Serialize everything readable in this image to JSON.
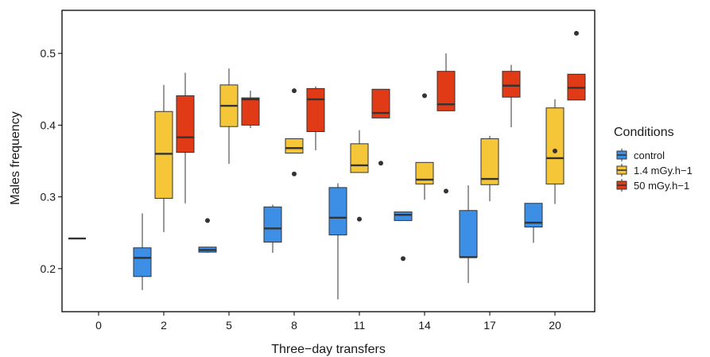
{
  "chart_data": {
    "type": "boxplot",
    "title": "",
    "xlabel": "Three−day transfers",
    "ylabel": "Males frequency",
    "x_categories": [
      "0",
      "2",
      "5",
      "8",
      "11",
      "14",
      "17",
      "20"
    ],
    "ylim": [
      0.14,
      0.56
    ],
    "yticks": [
      0.2,
      0.3,
      0.4,
      0.5
    ],
    "ytick_labels": [
      "0.2",
      "0.3",
      "0.4",
      "0.5"
    ],
    "grid": false,
    "legend": {
      "title": "Conditions",
      "position": "right",
      "entries": [
        "control",
        "1.4 mGy.h−1",
        "50 mGy.h−1"
      ]
    },
    "colors": {
      "control": "#3d8fe6",
      "1.4 mGy.h−1": "#f5c638",
      "50 mGy.h−1": "#e03b16"
    },
    "series": [
      {
        "name": "control",
        "boxes": [
          {
            "x": "0",
            "whisker_low": 0.242,
            "q1": 0.242,
            "median": 0.242,
            "q3": 0.242,
            "whisker_high": 0.242,
            "outliers": []
          },
          {
            "x": "2",
            "whisker_low": 0.17,
            "q1": 0.189,
            "median": 0.215,
            "q3": 0.229,
            "whisker_high": 0.277,
            "outliers": []
          },
          {
            "x": "5",
            "whisker_low": 0.222,
            "q1": 0.223,
            "median": 0.226,
            "q3": 0.23,
            "whisker_high": 0.23,
            "outliers": [
              0.267
            ]
          },
          {
            "x": "8",
            "whisker_low": 0.222,
            "q1": 0.237,
            "median": 0.256,
            "q3": 0.286,
            "whisker_high": 0.289,
            "outliers": []
          },
          {
            "x": "11",
            "whisker_low": 0.157,
            "q1": 0.247,
            "median": 0.271,
            "q3": 0.313,
            "whisker_high": 0.319,
            "outliers": []
          },
          {
            "x": "14",
            "whisker_low": 0.267,
            "q1": 0.267,
            "median": 0.275,
            "q3": 0.279,
            "whisker_high": 0.279,
            "outliers": [
              0.214
            ]
          },
          {
            "x": "17",
            "whisker_low": 0.18,
            "q1": 0.216,
            "median": 0.216,
            "q3": 0.281,
            "whisker_high": 0.316,
            "outliers": []
          },
          {
            "x": "20",
            "whisker_low": 0.236,
            "q1": 0.258,
            "median": 0.264,
            "q3": 0.291,
            "whisker_high": 0.291,
            "outliers": []
          }
        ]
      },
      {
        "name": "1.4 mGy.h−1",
        "boxes": [
          {
            "x": "2",
            "whisker_low": 0.251,
            "q1": 0.298,
            "median": 0.36,
            "q3": 0.419,
            "whisker_high": 0.456,
            "outliers": []
          },
          {
            "x": "5",
            "whisker_low": 0.346,
            "q1": 0.398,
            "median": 0.427,
            "q3": 0.456,
            "whisker_high": 0.479,
            "outliers": []
          },
          {
            "x": "8",
            "whisker_low": 0.361,
            "q1": 0.361,
            "median": 0.368,
            "q3": 0.381,
            "whisker_high": 0.381,
            "outliers": [
              0.448,
              0.332
            ]
          },
          {
            "x": "11",
            "whisker_low": 0.334,
            "q1": 0.334,
            "median": 0.344,
            "q3": 0.374,
            "whisker_high": 0.393,
            "outliers": [
              0.269
            ]
          },
          {
            "x": "14",
            "whisker_low": 0.296,
            "q1": 0.318,
            "median": 0.324,
            "q3": 0.348,
            "whisker_high": 0.348,
            "outliers": [
              0.441
            ]
          },
          {
            "x": "17",
            "whisker_low": 0.294,
            "q1": 0.317,
            "median": 0.325,
            "q3": 0.381,
            "whisker_high": 0.385,
            "outliers": []
          },
          {
            "x": "20",
            "whisker_low": 0.29,
            "q1": 0.318,
            "median": 0.354,
            "q3": 0.424,
            "whisker_high": 0.436,
            "outliers": [
              0.364
            ]
          }
        ]
      },
      {
        "name": "50 mGy.h−1",
        "boxes": [
          {
            "x": "2",
            "whisker_low": 0.291,
            "q1": 0.362,
            "median": 0.383,
            "q3": 0.441,
            "whisker_high": 0.473,
            "outliers": []
          },
          {
            "x": "5",
            "whisker_low": 0.396,
            "q1": 0.4,
            "median": 0.436,
            "q3": 0.438,
            "whisker_high": 0.448,
            "outliers": []
          },
          {
            "x": "8",
            "whisker_low": 0.365,
            "q1": 0.391,
            "median": 0.436,
            "q3": 0.451,
            "whisker_high": 0.454,
            "outliers": []
          },
          {
            "x": "11",
            "whisker_low": 0.41,
            "q1": 0.41,
            "median": 0.417,
            "q3": 0.45,
            "whisker_high": 0.45,
            "outliers": [
              0.347
            ]
          },
          {
            "x": "14",
            "whisker_low": 0.42,
            "q1": 0.42,
            "median": 0.429,
            "q3": 0.475,
            "whisker_high": 0.5,
            "outliers": [
              0.308
            ]
          },
          {
            "x": "17",
            "whisker_low": 0.397,
            "q1": 0.439,
            "median": 0.455,
            "q3": 0.475,
            "whisker_high": 0.484,
            "outliers": []
          },
          {
            "x": "20",
            "whisker_low": 0.435,
            "q1": 0.435,
            "median": 0.452,
            "q3": 0.471,
            "whisker_high": 0.471,
            "outliers": [
              0.528
            ]
          }
        ]
      }
    ]
  }
}
